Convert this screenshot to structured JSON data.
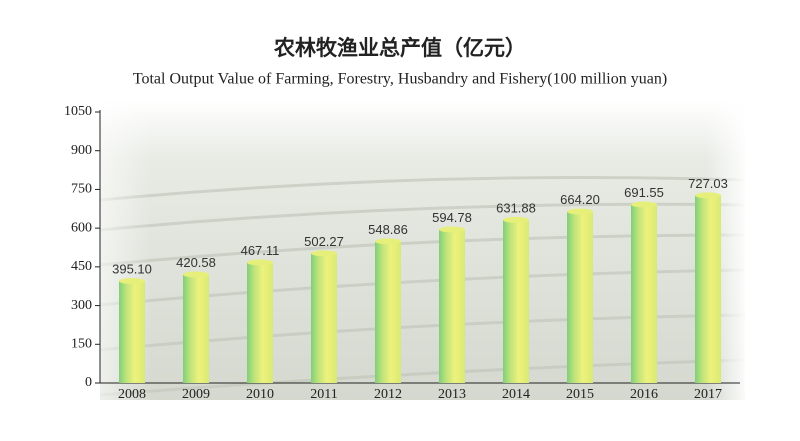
{
  "chart_data": {
    "type": "bar",
    "title": "农林牧渔业总产值（亿元）",
    "subtitle": "Total Output Value of Farming, Forestry, Husbandry and Fishery(100 million yuan)",
    "categories": [
      "2008",
      "2009",
      "2010",
      "2011",
      "2012",
      "2013",
      "2014",
      "2015",
      "2016",
      "2017"
    ],
    "values": [
      395.1,
      420.58,
      467.11,
      502.27,
      548.86,
      594.78,
      631.88,
      664.2,
      691.55,
      727.03
    ],
    "value_labels": [
      "395.10",
      "420.58",
      "467.11",
      "502.27",
      "548.86",
      "594.78",
      "631.88",
      "664.20",
      "691.55",
      "727.03"
    ],
    "color": "#e6ef7a",
    "ylim": [
      0,
      1050
    ],
    "yticks": [
      0,
      150,
      300,
      450,
      600,
      750,
      900,
      1050
    ],
    "grid": false
  }
}
